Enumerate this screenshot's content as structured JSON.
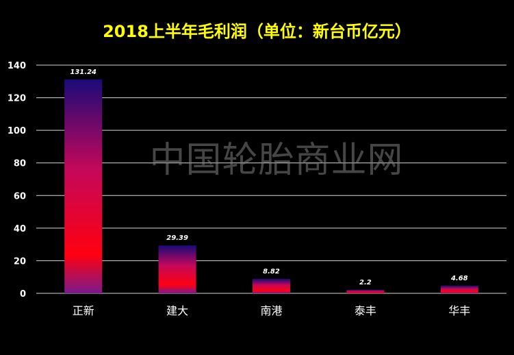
{
  "chart_data": {
    "type": "bar",
    "title": "2018上半年毛利润（单位：新台币亿元）",
    "xlabel": "",
    "ylabel": "",
    "categories": [
      "正新",
      "建大",
      "南港",
      "泰丰",
      "华丰"
    ],
    "values": [
      131.24,
      29.39,
      8.82,
      2.2,
      4.68
    ],
    "value_labels": [
      "131.24",
      "29.39",
      "8.82",
      "2.2",
      "4.68"
    ],
    "ylim": [
      0,
      140
    ],
    "yticks": [
      0,
      20,
      40,
      60,
      80,
      100,
      120,
      140
    ],
    "grid": true,
    "legend": "none",
    "colors": {
      "background": "#000000",
      "title": "#ffff00",
      "axis_text": "#ffffff",
      "grid": "#d9d9d9",
      "bar_top": "#1a0a78",
      "bar_mid": "#c4085a",
      "bar_low": "#ff0010",
      "bar_bottom": "#7a1a8c"
    }
  },
  "watermark": "中国轮胎商业网"
}
